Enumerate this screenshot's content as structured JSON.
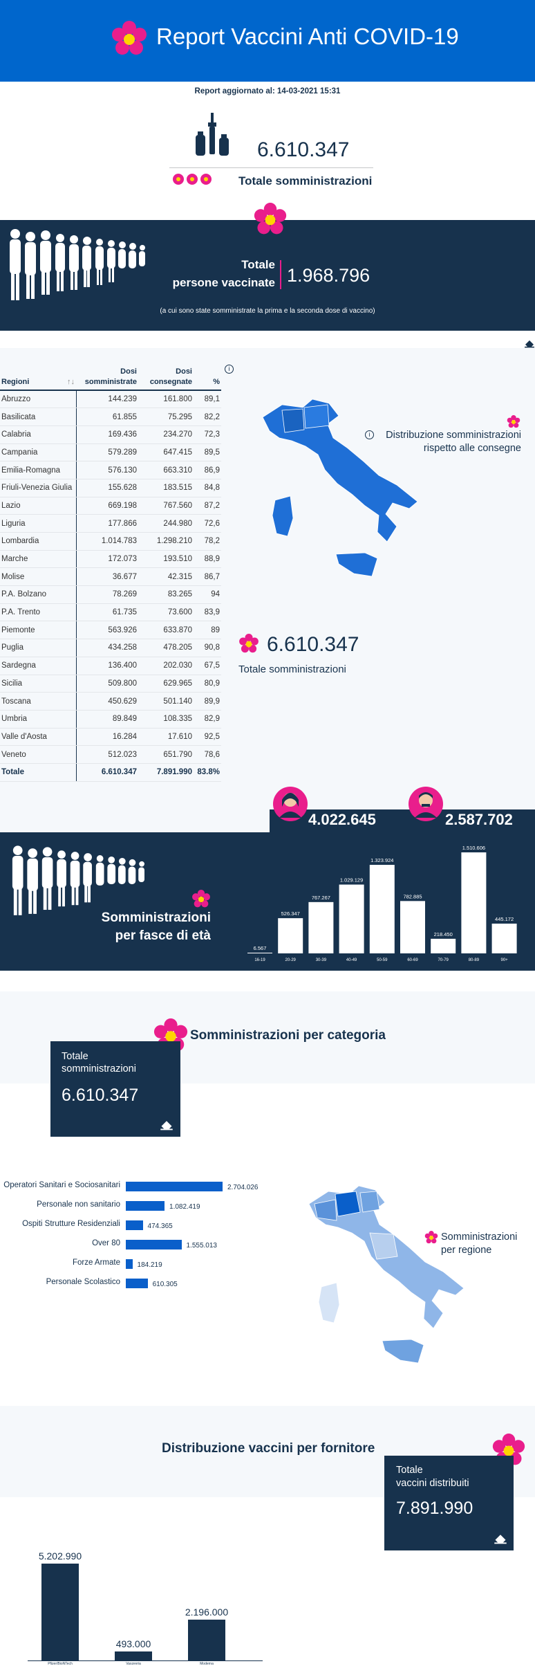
{
  "header": {
    "title": "Report Vaccini Anti COVID-19"
  },
  "updated": "Report aggiornato al: 14-03-2021 15:31",
  "totals": {
    "value": "6.610.347",
    "label": "Totale somministrazioni"
  },
  "vaccinated": {
    "label_line1": "Totale",
    "label_line2": "persone vaccinate",
    "value": "1.968.796",
    "note": "(a cui sono state somministrate la prima e la seconda dose di vaccino)"
  },
  "table": {
    "headers": [
      "Regioni",
      "Dosi somministrate",
      "Dosi consegnate",
      "%"
    ],
    "rows": [
      [
        "Abruzzo",
        "144.239",
        "161.800",
        "89,1"
      ],
      [
        "Basilicata",
        "61.855",
        "75.295",
        "82,2"
      ],
      [
        "Calabria",
        "169.436",
        "234.270",
        "72,3"
      ],
      [
        "Campania",
        "579.289",
        "647.415",
        "89,5"
      ],
      [
        "Emilia-Romagna",
        "576.130",
        "663.310",
        "86,9"
      ],
      [
        "Friuli-Venezia Giulia",
        "155.628",
        "183.515",
        "84,8"
      ],
      [
        "Lazio",
        "669.198",
        "767.560",
        "87,2"
      ],
      [
        "Liguria",
        "177.866",
        "244.980",
        "72,6"
      ],
      [
        "Lombardia",
        "1.014.783",
        "1.298.210",
        "78,2"
      ],
      [
        "Marche",
        "172.073",
        "193.510",
        "88,9"
      ],
      [
        "Molise",
        "36.677",
        "42.315",
        "86,7"
      ],
      [
        "P.A. Bolzano",
        "78.269",
        "83.265",
        "94"
      ],
      [
        "P.A. Trento",
        "61.735",
        "73.600",
        "83,9"
      ],
      [
        "Piemonte",
        "563.926",
        "633.870",
        "89"
      ],
      [
        "Puglia",
        "434.258",
        "478.205",
        "90,8"
      ],
      [
        "Sardegna",
        "136.400",
        "202.030",
        "67,5"
      ],
      [
        "Sicilia",
        "509.800",
        "629.965",
        "80,9"
      ],
      [
        "Toscana",
        "450.629",
        "501.140",
        "89,9"
      ],
      [
        "Umbria",
        "89.849",
        "108.335",
        "82,9"
      ],
      [
        "Valle d'Aosta",
        "16.284",
        "17.610",
        "92,5"
      ],
      [
        "Veneto",
        "512.023",
        "651.790",
        "78,6"
      ]
    ],
    "total": [
      "Totale",
      "6.610.347",
      "7.891.990",
      "83.8%"
    ]
  },
  "map1": {
    "label_line1": "Distribuzione somministrazioni",
    "label_line2": "rispetto alle consegne",
    "total_value": "6.610.347",
    "total_label": "Totale somministrazioni"
  },
  "gender": {
    "female": "4.022.645",
    "male": "2.587.702"
  },
  "age": {
    "title_line1": "Somministrazioni",
    "title_line2": "per fasce di età",
    "chart_data": {
      "type": "bar",
      "categories": [
        "16-19",
        "20-29",
        "30-39",
        "40-49",
        "50-59",
        "60-69",
        "70-79",
        "80-89",
        "90+"
      ],
      "values": [
        6567,
        526347,
        767267,
        1029129,
        1323924,
        782885,
        218450,
        1510606,
        445172
      ],
      "value_labels": [
        "6.567",
        "526.347",
        "767.267",
        "1.029.129",
        "1.323.924",
        "782.885",
        "218.450",
        "1.510.606",
        "445.172"
      ],
      "ylim": [
        0,
        1510606
      ]
    }
  },
  "category": {
    "title": "Somministrazioni per categoria",
    "box_label_line1": "Totale",
    "box_label_line2": "somministrazioni",
    "box_value": "6.610.347",
    "chart_data": {
      "type": "bar",
      "categories": [
        "Operatori Sanitari e Sociosanitari",
        "Personale non sanitario",
        "Ospiti Strutture Residenziali",
        "Over 80",
        "Forze Armate",
        "Personale Scolastico"
      ],
      "values": [
        2704026,
        1082419,
        474365,
        1555013,
        184219,
        610305
      ],
      "value_labels": [
        "2.704.026",
        "1.082.419",
        "474.365",
        "1.555.013",
        "184.219",
        "610.305"
      ],
      "xlim": [
        0,
        2704026
      ]
    },
    "map_label_line1": "Somministrazioni",
    "map_label_line2": "per regione"
  },
  "supplier": {
    "title": "Distribuzione vaccini per fornitore",
    "box_label_line1": "Totale",
    "box_label_line2": "vaccini distribuiti",
    "box_value": "7.891.990",
    "chart_data": {
      "type": "bar",
      "categories": [
        "Pfizer/BioNTech",
        "Vaxzevria",
        "Moderna"
      ],
      "values": [
        5202990,
        493000,
        2196000
      ],
      "value_labels": [
        "5.202.990",
        "493.000",
        "2.196.000"
      ],
      "ylim": [
        0,
        5202990
      ]
    }
  },
  "colors": {
    "brand": "#0066cc",
    "navy": "#17324d",
    "accent": "#e91e8c",
    "bar_blue": "#0a5fca"
  }
}
